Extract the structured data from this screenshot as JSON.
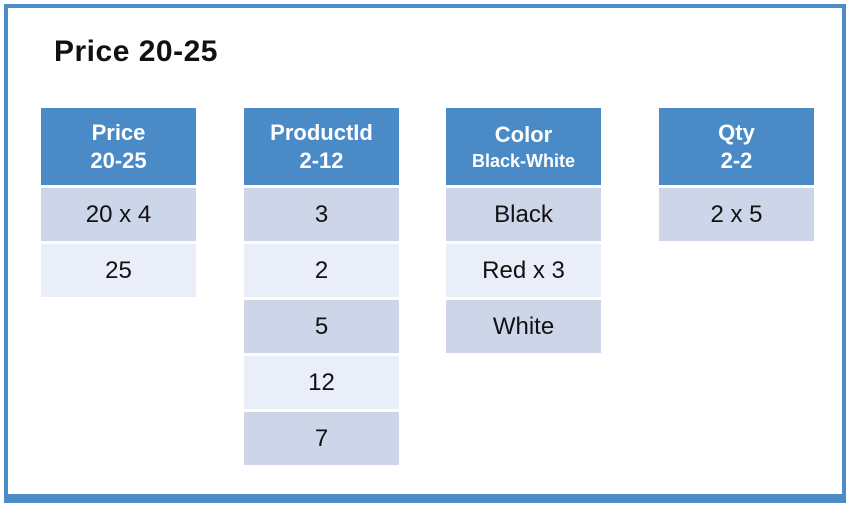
{
  "slide": {
    "title": "Price 20-25"
  },
  "colors": {
    "header_bg": "#4a8ac6",
    "row_odd_bg": "#cdd6e9",
    "row_even_bg": "#eaeef8",
    "header_text": "#ffffff",
    "body_text": "#111111",
    "frame_border": "#4e8cc8",
    "slide_bg": "#ffffff"
  },
  "tables": [
    {
      "name": "price",
      "header": {
        "line1": "Price",
        "line2": "20-25"
      },
      "rows": [
        "20 x 4",
        "25"
      ]
    },
    {
      "name": "product-id",
      "header": {
        "line1": "ProductId",
        "line2": "2-12"
      },
      "rows": [
        "3",
        "2",
        "5",
        "12",
        "7"
      ]
    },
    {
      "name": "color",
      "header": {
        "line1": "Color",
        "line2": "Black-White"
      },
      "rows": [
        "Black",
        "Red x 3",
        "White"
      ]
    },
    {
      "name": "qty",
      "header": {
        "line1": "Qty",
        "line2": "2-2"
      },
      "rows": [
        "2 x 5"
      ]
    }
  ]
}
